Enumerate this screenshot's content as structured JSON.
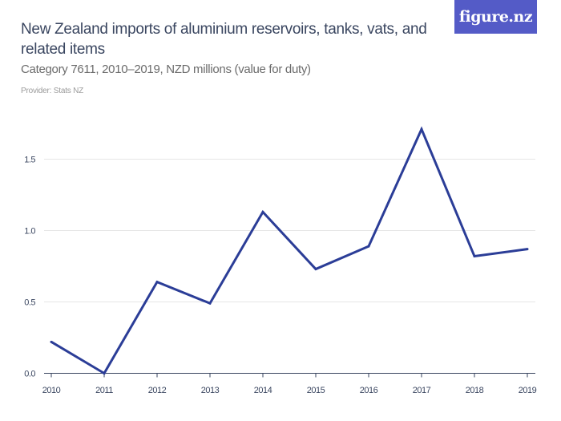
{
  "header": {
    "title": "New Zealand imports of aluminium reservoirs, tanks, vats, and related items",
    "subtitle": "Category 7611, 2010–2019, NZD millions (value for duty)",
    "provider": "Provider: Stats NZ",
    "logo": "figure.nz"
  },
  "colors": {
    "line": "#2b3d97",
    "grid": "#e6e6e6",
    "logo_bg": "#545bc7"
  },
  "chart_data": {
    "type": "line",
    "title": "New Zealand imports of aluminium reservoirs, tanks, vats, and related items",
    "subtitle": "Category 7611, 2010–2019, NZD millions (value for duty)",
    "x": [
      "2010",
      "2011",
      "2012",
      "2013",
      "2014",
      "2015",
      "2016",
      "2017",
      "2018",
      "2019"
    ],
    "values": [
      0.22,
      0.0,
      0.64,
      0.49,
      1.13,
      0.73,
      0.89,
      1.71,
      0.82,
      0.87
    ],
    "yticks": [
      "0.0",
      "0.5",
      "1.0",
      "1.5"
    ],
    "ylim": [
      0,
      1.75
    ],
    "grid": true,
    "legend": "none"
  }
}
